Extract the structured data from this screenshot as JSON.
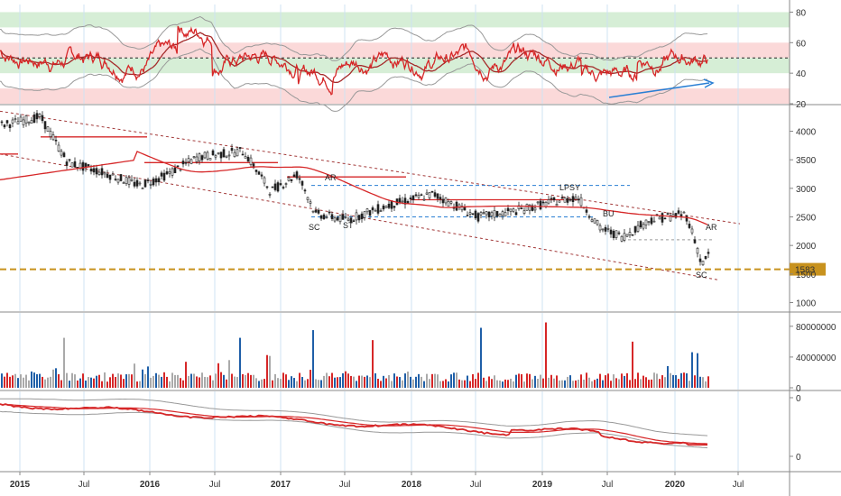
{
  "chart_data": [
    {
      "type": "line",
      "panel": "oscillator",
      "y_ticks": [
        "80",
        "60",
        "40",
        "20"
      ],
      "ylim": [
        20,
        85
      ],
      "reference_levels": [
        50
      ],
      "zones": [
        {
          "from": 70,
          "to": 80,
          "color": "#d6eed6"
        },
        {
          "from": 50,
          "to": 60,
          "color": "#fbd9d9"
        },
        {
          "from": 40,
          "to": 50,
          "color": "#d6eed6"
        },
        {
          "from": 20,
          "to": 30,
          "color": "#fbd9d9"
        }
      ],
      "colors": {
        "line": "#d62728",
        "signal": "#a52a2a",
        "bands": "#999999",
        "divergence": "#2a7fd4"
      }
    },
    {
      "type": "line",
      "panel": "price",
      "y_ticks": [
        "4000",
        "3500",
        "3000",
        "2500",
        "2000",
        "1500",
        "1000"
      ],
      "ylim": [
        850,
        4450
      ],
      "price_label": "1583",
      "price_level": 1583,
      "annotations": [
        "SC",
        "AR",
        "ST",
        "LPSY",
        "BU",
        "AR",
        "SC"
      ],
      "colors": {
        "moving_average": "#d62728",
        "channel": "#a33a3a",
        "level_lines": "#2a7fd4",
        "support": "#c8921e"
      }
    },
    {
      "type": "bar",
      "panel": "volume",
      "y_ticks": [
        "80000000",
        "40000000",
        "0"
      ],
      "ylim": [
        0,
        95000000
      ],
      "colors": {
        "up": "#d62728",
        "down": "#1f5fa8",
        "neutral": "#aaaaaa"
      }
    },
    {
      "type": "line",
      "panel": "cumulative",
      "y_ticks": [
        "0",
        "0"
      ],
      "colors": {
        "line": "#d62728",
        "bands": "#999999"
      }
    }
  ],
  "x_ticks": [
    "2015",
    "Jul",
    "2016",
    "Jul",
    "2017",
    "Jul",
    "2018",
    "Jul",
    "2019",
    "Jul",
    "2020",
    "Jul"
  ],
  "x_ticks_bold": [
    true,
    false,
    true,
    false,
    true,
    false,
    true,
    false,
    true,
    false,
    true,
    false
  ]
}
